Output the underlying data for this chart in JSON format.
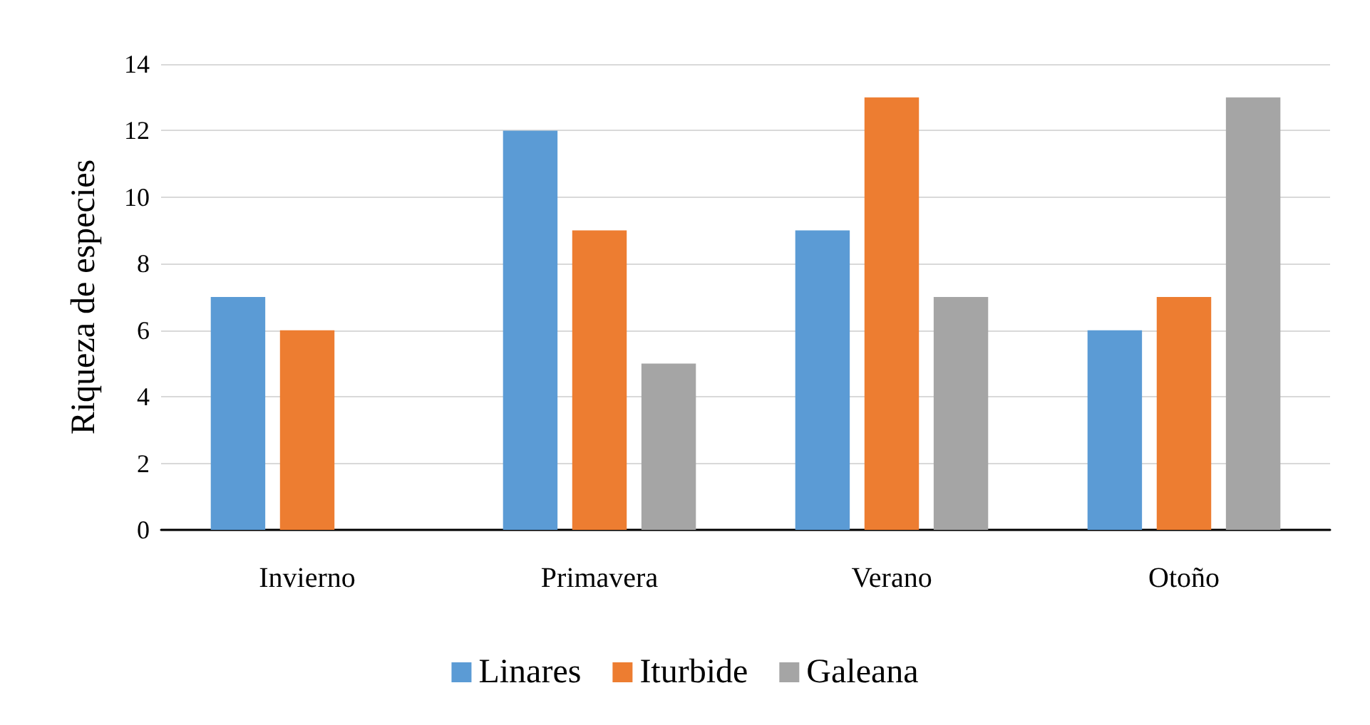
{
  "chart_data": {
    "type": "bar",
    "ylabel": "Riqueza de especies",
    "categories": [
      "Invierno",
      "Primavera",
      "Verano",
      "Otoño"
    ],
    "series": [
      {
        "name": "Linares",
        "color": "#5b9bd5",
        "values": [
          7,
          12,
          9,
          6
        ]
      },
      {
        "name": "Iturbide",
        "color": "#ed7d31",
        "values": [
          6,
          9,
          13,
          7
        ]
      },
      {
        "name": "Galeana",
        "color": "#a5a5a5",
        "values": [
          0,
          5,
          7,
          13
        ]
      }
    ],
    "ylim": [
      0,
      14
    ],
    "yticks": [
      0,
      2,
      4,
      6,
      8,
      10,
      12,
      14
    ],
    "grid": "y",
    "legend": "bottom"
  }
}
